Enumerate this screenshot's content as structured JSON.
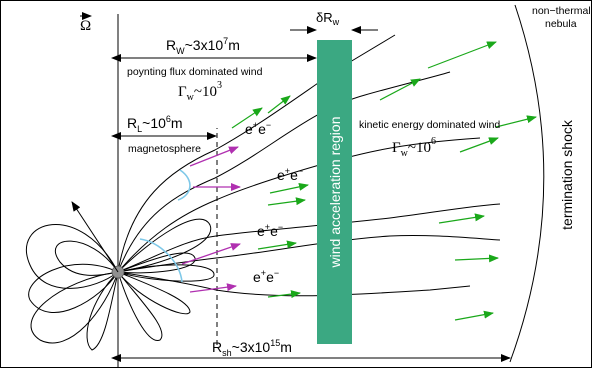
{
  "labels": {
    "omega_vec": "Ω",
    "delta_rw": "δR",
    "delta_rw_sub": "w",
    "rw": "R",
    "rw_sub": "W",
    "rw_val": "~3x10",
    "rw_exp": "7",
    "rw_unit": "m",
    "poynting": "poynting flux dominated wind",
    "gamma": "Γ",
    "gamma_sub": "w",
    "gamma_val1": "~10",
    "gamma_exp1": "3",
    "rl": "R",
    "rl_sub": "L",
    "rl_val": "~10",
    "rl_exp": "6",
    "rl_unit": "m",
    "magnetosphere": "magnetosphere",
    "pair_e": "e",
    "pair_plus": "+",
    "pair_minus": "−",
    "wind_accel": "wind acceleration region",
    "kinetic": "kinetic energy dominated wind",
    "gamma_val2": "~10",
    "gamma_exp2": "6",
    "nonthermal_1": "non−thermal",
    "nonthermal_2": "nebula",
    "termination": "termination shock",
    "rsh": "R",
    "rsh_sub": "sh",
    "rsh_val": "~3x10",
    "rsh_exp": "15",
    "rsh_unit": "m"
  },
  "colors": {
    "accel_region": "#3ba882",
    "green_arrow": "#1aa81a",
    "magenta_arrow": "#b030b0",
    "cyan_arc": "#7ec8e8",
    "pulsar": "#909090"
  }
}
